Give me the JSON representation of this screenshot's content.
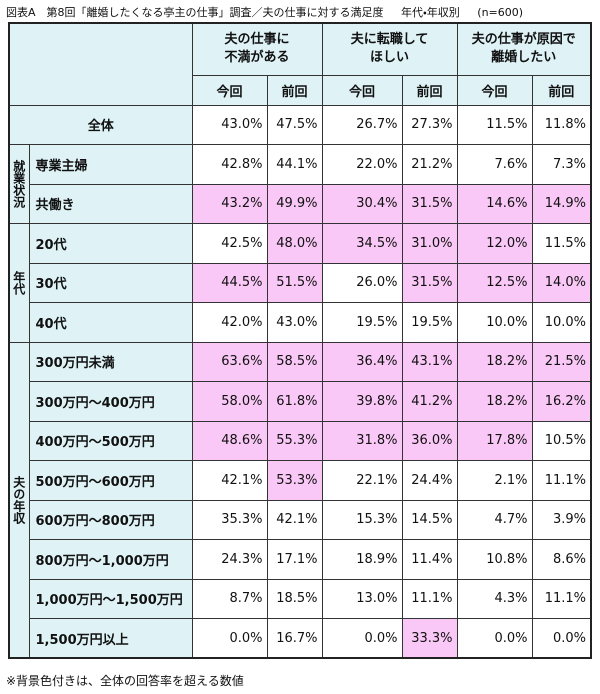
{
  "title": "図表A　第8回「離婚したくなる亭主の仕事」調査／夫の仕事に対する満足度",
  "subtitle": "年代・年収別",
  "sample": "(n=600)",
  "table": {
    "column_groups": [
      "夫の仕事に\n不満がある",
      "夫に転職して\nほしい",
      "夫の仕事が原因で\n離婚したい"
    ],
    "columns": [
      "今回",
      "前回",
      "今回",
      "前回",
      "今回",
      "前回"
    ],
    "highlight_color": "#f9c8f6",
    "total": {
      "label": "全体",
      "values": [
        "43.0%",
        "47.5%",
        "26.7%",
        "27.3%",
        "11.5%",
        "11.8%"
      ]
    },
    "groups": [
      {
        "label": "就業状況",
        "rows": [
          {
            "label": "専業主婦",
            "values": [
              "42.8%",
              "44.1%",
              "22.0%",
              "21.2%",
              "7.6%",
              "7.3%"
            ],
            "highlight": [
              false,
              false,
              false,
              false,
              false,
              false
            ]
          },
          {
            "label": "共働き",
            "values": [
              "43.2%",
              "49.9%",
              "30.4%",
              "31.5%",
              "14.6%",
              "14.9%"
            ],
            "highlight": [
              true,
              true,
              true,
              true,
              true,
              true
            ]
          }
        ]
      },
      {
        "label": "年代",
        "rows": [
          {
            "label": "20代",
            "values": [
              "42.5%",
              "48.0%",
              "34.5%",
              "31.0%",
              "12.0%",
              "11.5%"
            ],
            "highlight": [
              false,
              true,
              true,
              true,
              true,
              false
            ]
          },
          {
            "label": "30代",
            "values": [
              "44.5%",
              "51.5%",
              "26.0%",
              "31.5%",
              "12.5%",
              "14.0%"
            ],
            "highlight": [
              true,
              true,
              false,
              true,
              true,
              true
            ]
          },
          {
            "label": "40代",
            "values": [
              "42.0%",
              "43.0%",
              "19.5%",
              "19.5%",
              "10.0%",
              "10.0%"
            ],
            "highlight": [
              false,
              false,
              false,
              false,
              false,
              false
            ]
          }
        ]
      },
      {
        "label": "夫の年収",
        "rows": [
          {
            "label": "300万円未満",
            "values": [
              "63.6%",
              "58.5%",
              "36.4%",
              "43.1%",
              "18.2%",
              "21.5%"
            ],
            "highlight": [
              true,
              true,
              true,
              true,
              true,
              true
            ]
          },
          {
            "label": "300万円～400万円",
            "values": [
              "58.0%",
              "61.8%",
              "39.8%",
              "41.2%",
              "18.2%",
              "16.2%"
            ],
            "highlight": [
              true,
              true,
              true,
              true,
              true,
              true
            ]
          },
          {
            "label": "400万円～500万円",
            "values": [
              "48.6%",
              "55.3%",
              "31.8%",
              "36.0%",
              "17.8%",
              "10.5%"
            ],
            "highlight": [
              true,
              true,
              true,
              true,
              true,
              false
            ]
          },
          {
            "label": "500万円～600万円",
            "values": [
              "42.1%",
              "53.3%",
              "22.1%",
              "24.4%",
              "2.1%",
              "11.1%"
            ],
            "highlight": [
              false,
              true,
              false,
              false,
              false,
              false
            ]
          },
          {
            "label": "600万円～800万円",
            "values": [
              "35.3%",
              "42.1%",
              "15.3%",
              "14.5%",
              "4.7%",
              "3.9%"
            ],
            "highlight": [
              false,
              false,
              false,
              false,
              false,
              false
            ]
          },
          {
            "label": "800万円～1,000万円",
            "values": [
              "24.3%",
              "17.1%",
              "18.9%",
              "11.4%",
              "10.8%",
              "8.6%"
            ],
            "highlight": [
              false,
              false,
              false,
              false,
              false,
              false
            ]
          },
          {
            "label": "1,000万円～1,500万円",
            "values": [
              "8.7%",
              "18.5%",
              "13.0%",
              "11.1%",
              "4.3%",
              "11.1%"
            ],
            "highlight": [
              false,
              false,
              false,
              false,
              false,
              false
            ]
          },
          {
            "label": "1,500万円以上",
            "values": [
              "0.0%",
              "16.7%",
              "0.0%",
              "33.3%",
              "0.0%",
              "0.0%"
            ],
            "highlight": [
              false,
              false,
              false,
              true,
              false,
              false
            ]
          }
        ]
      }
    ]
  },
  "footnote": "※背景色付きは、全体の回答率を超える数値"
}
